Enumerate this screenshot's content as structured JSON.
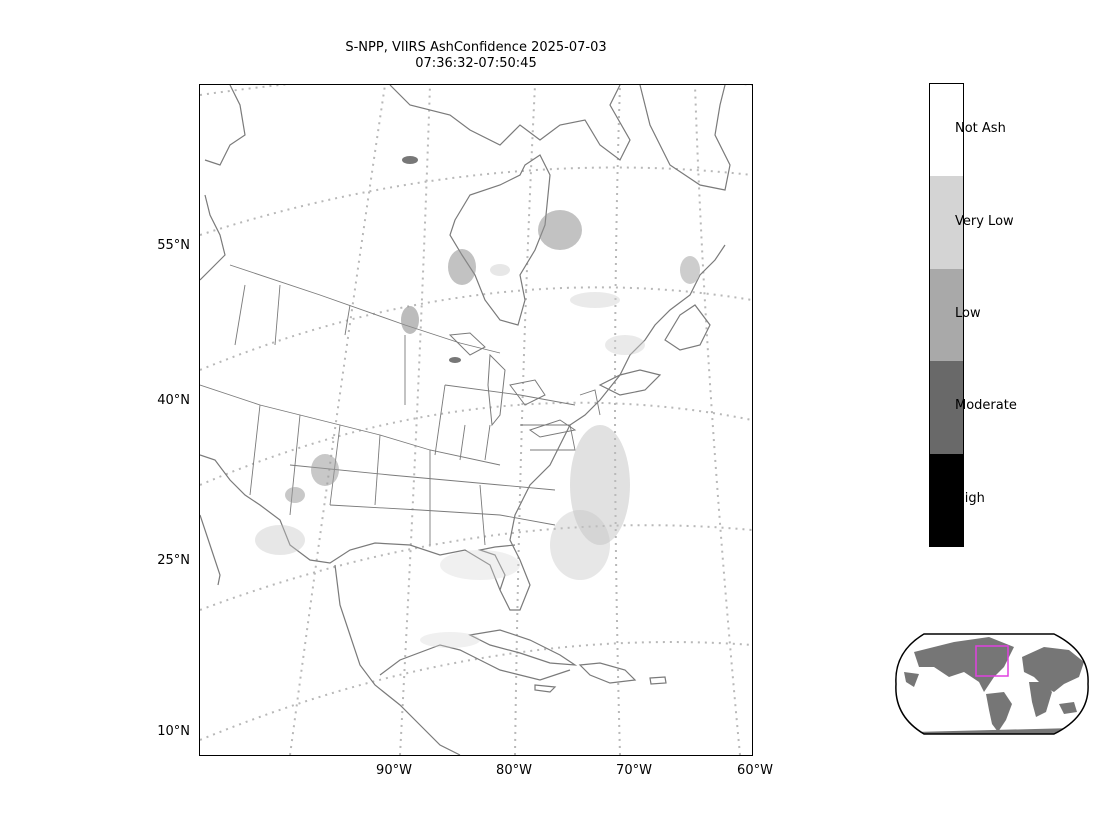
{
  "title": {
    "line1": "S-NPP, VIIRS AshConfidence 2025-07-03",
    "line2": "07:36:32-07:50:45"
  },
  "map": {
    "latitude_labels": [
      "55°N",
      "40°N",
      "25°N",
      "10°N"
    ],
    "longitude_labels": [
      "90°W",
      "80°W",
      "70°W",
      "60°W"
    ],
    "coastline_color": "#7a7a7a",
    "gridline_color": "#b8b8b8"
  },
  "colorbar": {
    "categories": [
      {
        "label": "Not Ash",
        "color": "#ffffff"
      },
      {
        "label": "Very Low",
        "color": "#d4d4d4"
      },
      {
        "label": "Low",
        "color": "#a9a9a9"
      },
      {
        "label": "Moderate",
        "color": "#696969"
      },
      {
        "label": "High",
        "color": "#000000"
      }
    ]
  },
  "inset": {
    "land_color": "#767676",
    "highlight_color": "#e040e0"
  }
}
